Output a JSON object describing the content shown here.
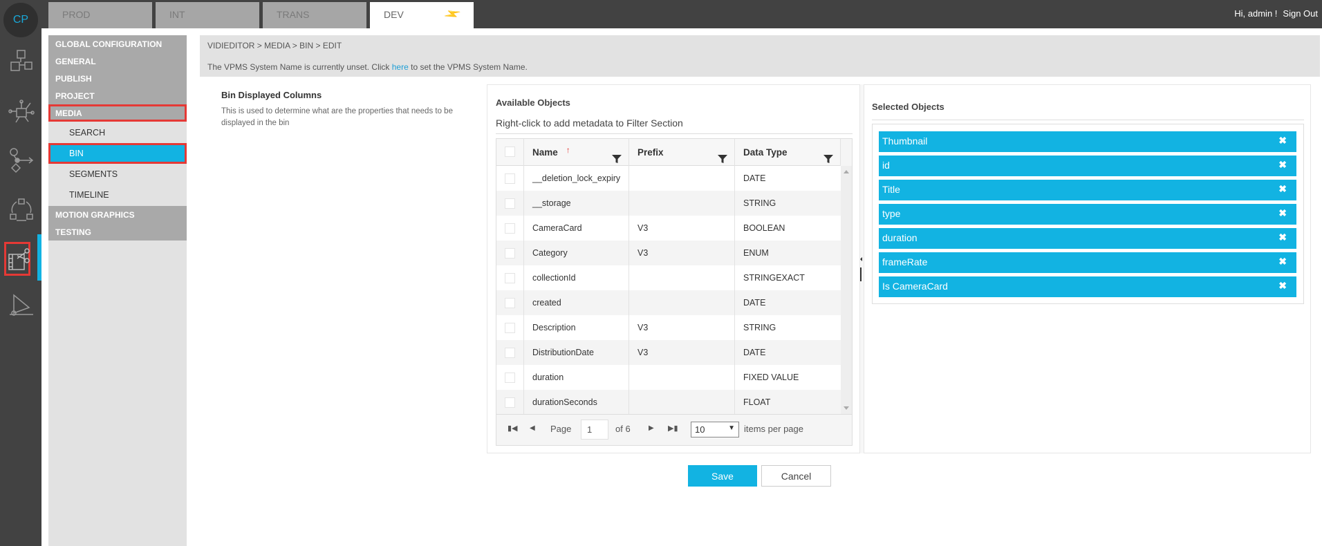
{
  "tabs": [
    {
      "label": "PROD"
    },
    {
      "label": "INT"
    },
    {
      "label": "TRANS"
    },
    {
      "label": "DEV",
      "active": true,
      "icon": "plug-icon"
    }
  ],
  "user": {
    "greeting": "Hi, admin !",
    "signout": "Sign Out"
  },
  "logo": "CP",
  "rail_icons": [
    "cubes-icon",
    "network-icon",
    "workflow-icon",
    "cycle-icon",
    "video-editor-icon",
    "graphics-icon"
  ],
  "menu": {
    "top": [
      "GLOBAL CONFIGURATION",
      "GENERAL",
      "PUBLISH",
      "PROJECT",
      "MEDIA"
    ],
    "sub": [
      "SEARCH",
      "BIN",
      "SEGMENTS",
      "TIMELINE"
    ],
    "bottom": [
      "MOTION GRAPHICS",
      "TESTING"
    ],
    "selected": "BIN"
  },
  "breadcrumb": "VIDIEDITOR > MEDIA > BIN > EDIT",
  "notice": {
    "before": "The VPMS System Name is currently unset. Click ",
    "link": "here",
    "after": " to set the VPMS System Name."
  },
  "setting": {
    "title": "Bin Displayed Columns",
    "description": "This is used to determine what are the properties that needs to be displayed in the bin"
  },
  "available": {
    "title": "Available Objects",
    "hint": "Right-click to add metadata to Filter Section",
    "columns": [
      "Name",
      "Prefix",
      "Data Type"
    ],
    "rows": [
      [
        "__deletion_lock_expiry",
        "",
        "DATE"
      ],
      [
        "__storage",
        "",
        "STRING"
      ],
      [
        "CameraCard",
        "V3",
        "BOOLEAN"
      ],
      [
        "Category",
        "V3",
        "ENUM"
      ],
      [
        "collectionId",
        "",
        "STRINGEXACT"
      ],
      [
        "created",
        "",
        "DATE"
      ],
      [
        "Description",
        "V3",
        "STRING"
      ],
      [
        "DistributionDate",
        "V3",
        "DATE"
      ],
      [
        "duration",
        "",
        "FIXED VALUE"
      ],
      [
        "durationSeconds",
        "",
        "FLOAT"
      ]
    ],
    "pager": {
      "page_label": "Page",
      "page": "1",
      "of": "of 6",
      "page_size": "10",
      "per_page": "items per page"
    }
  },
  "selected": {
    "title": "Selected Objects",
    "items": [
      "Thumbnail",
      "id",
      "Title",
      "type",
      "duration",
      "frameRate",
      "Is CameraCard"
    ]
  },
  "buttons": {
    "save": "Save",
    "cancel": "Cancel"
  },
  "colors": {
    "accent": "#12b3e2",
    "highlight": "#e53935",
    "rail": "#424242"
  }
}
